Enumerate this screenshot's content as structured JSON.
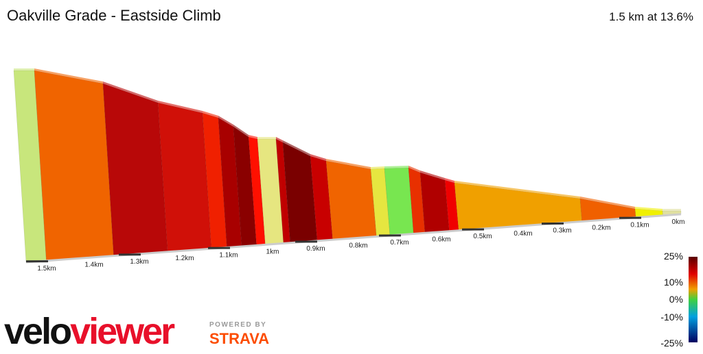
{
  "header": {
    "title": "Oakville Grade - Eastside Climb",
    "summary": "1.5 km at 13.6%"
  },
  "profile": {
    "distance_labels": [
      "1.5km",
      "1.4km",
      "1.3km",
      "1.2km",
      "1.1km",
      "1km",
      "0.9km",
      "0.8km",
      "0.7km",
      "0.6km",
      "0.5km",
      "0.4km",
      "0.3km",
      "0.2km",
      "0.1km",
      "0km"
    ]
  },
  "legend": {
    "labels": [
      "25%",
      "10%",
      "0%",
      "-10%",
      "-25%"
    ]
  },
  "branding": {
    "logo_dark": "velo",
    "logo_red": "viewer",
    "powered_by": "POWERED BY",
    "strava": "STRAVA"
  }
}
